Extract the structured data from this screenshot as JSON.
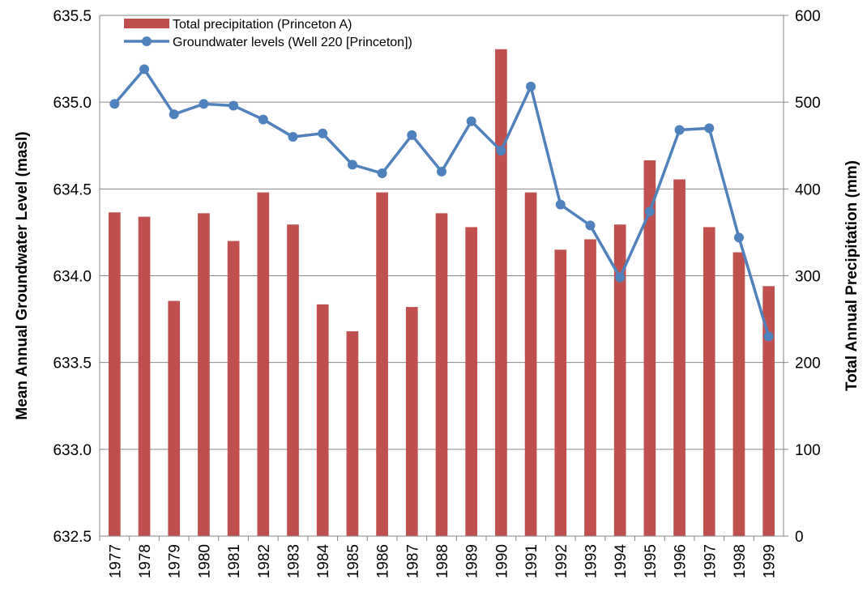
{
  "chart_data": {
    "type": "bar-line",
    "categories": [
      "1977",
      "1978",
      "1979",
      "1980",
      "1981",
      "1982",
      "1983",
      "1984",
      "1985",
      "1986",
      "1987",
      "1988",
      "1989",
      "1990",
      "1991",
      "1992",
      "1993",
      "1994",
      "1995",
      "1996",
      "1997",
      "1998",
      "1999"
    ],
    "series": [
      {
        "name": "Total precipitation (Princeton A)",
        "type": "bar",
        "axis": "y2",
        "color": "#c0504d",
        "values": [
          373,
          368,
          271,
          372,
          340,
          396,
          359,
          267,
          236,
          396,
          264,
          372,
          356,
          561,
          396,
          330,
          342,
          359,
          433,
          411,
          356,
          327,
          288
        ]
      },
      {
        "name": "Groundwater levels (Well 220 [Princeton])",
        "type": "line",
        "axis": "y",
        "color": "#4f81bd",
        "values": [
          634.99,
          635.19,
          634.93,
          634.99,
          634.98,
          634.9,
          634.8,
          634.82,
          634.64,
          634.59,
          634.81,
          634.6,
          634.89,
          634.72,
          635.09,
          634.41,
          634.29,
          633.99,
          634.37,
          634.84,
          634.85,
          634.22,
          633.65
        ]
      }
    ],
    "ylabel": "Mean Annual Groundwater Level (masl)",
    "y2label": "Total Annual Precipitation (mm)",
    "ylim": [
      632.5,
      635.5
    ],
    "yticks": [
      632.5,
      {
        "value": 633,
        "label": "633.0"
      },
      633.5,
      {
        "value": 634,
        "label": "634.0"
      },
      634.5,
      {
        "value": 635,
        "label": "635.0"
      },
      635.5
    ],
    "y2lim": [
      0,
      600
    ],
    "y2ticks": [
      0,
      100,
      200,
      300,
      400,
      500,
      600
    ],
    "grid": true,
    "legend": "upper left"
  }
}
